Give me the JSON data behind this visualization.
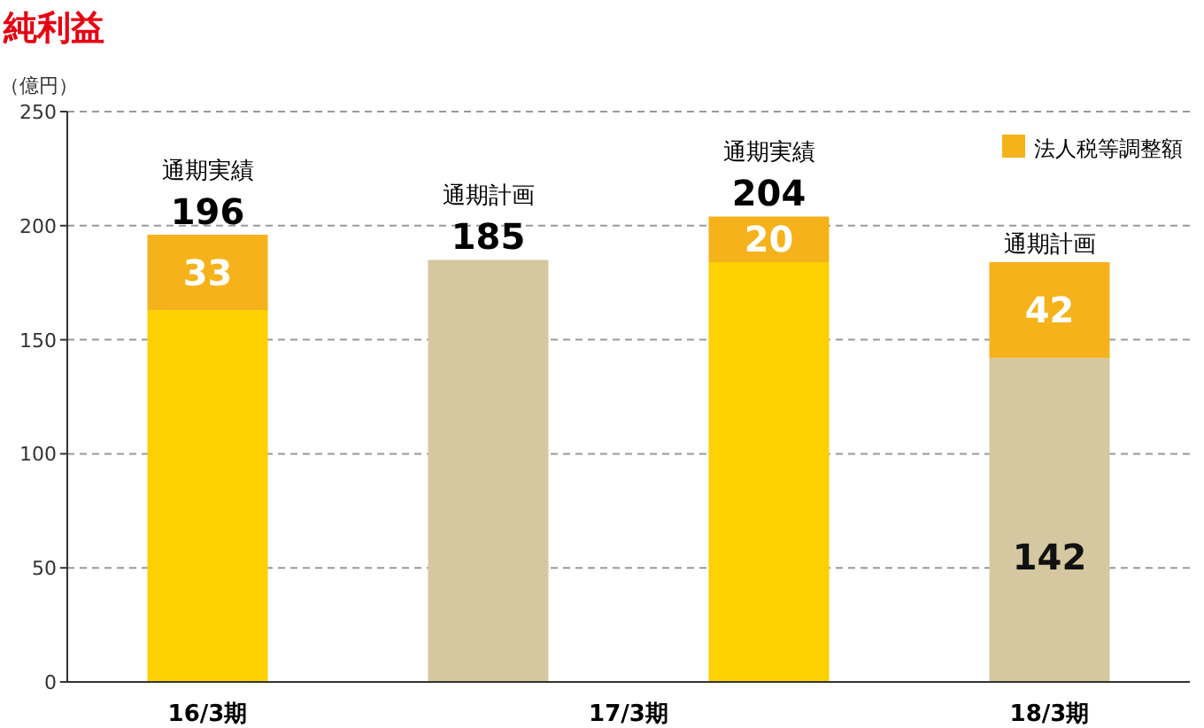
{
  "chart_data": {
    "type": "bar",
    "title": "純利益",
    "ylabel": "（億円）",
    "stacked": true,
    "categories": [
      "16/3期",
      "17/3期",
      null,
      "18/3期"
    ],
    "series": [
      {
        "colors": [
          "#fdd000",
          "#d5c8a0",
          "#fdd000",
          "#d5c8a0"
        ],
        "values": [
          163,
          185,
          184,
          142
        ],
        "value_labels": [
          null,
          null,
          null,
          "142"
        ]
      },
      {
        "name": "法人税等調整額",
        "color": "#f5b21a",
        "values": [
          33,
          null,
          20,
          42
        ],
        "value_labels": [
          "33",
          null,
          "20",
          "42"
        ]
      }
    ],
    "totals": [
      "196",
      "185",
      "204",
      null
    ],
    "annotations": [
      "通期実績",
      "通期計画",
      "通期実績",
      "通期計画"
    ],
    "ylim": [
      0,
      250
    ],
    "yticks": [
      0,
      50,
      100,
      150,
      200,
      250
    ],
    "grid": "y",
    "legend": "top right"
  }
}
